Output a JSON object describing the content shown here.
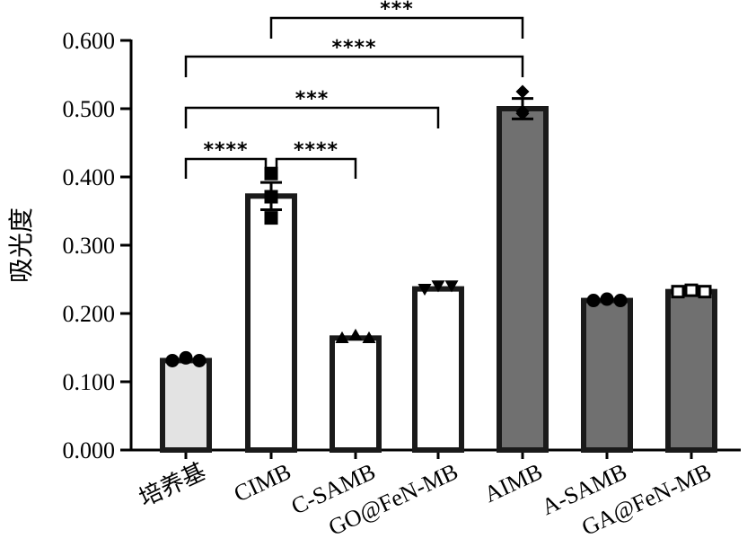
{
  "chart_data": {
    "type": "bar",
    "ylabel": "吸光度",
    "xlabel": "",
    "title": "",
    "ylim": [
      0,
      0.6
    ],
    "yticks": [
      "0.000",
      "0.100",
      "0.200",
      "0.300",
      "0.400",
      "0.500",
      "0.600"
    ],
    "grid": false,
    "legend": "none",
    "categories": [
      "培养基",
      "CIMB",
      "C-SAMB",
      "GO@FeN-MB",
      "AIMB",
      "A-SAMB",
      "GA@FeN-MB"
    ],
    "values": [
      0.131,
      0.372,
      0.164,
      0.236,
      0.5,
      0.219,
      0.232
    ],
    "errors": [
      0.002,
      0.02,
      0.002,
      0.003,
      0.015,
      0.002,
      0.004
    ],
    "fills": [
      "#e3e3e3",
      "#ffffff",
      "#ffffff",
      "#ffffff",
      "#707070",
      "#707070",
      "#707070"
    ],
    "markers": [
      "circle",
      "square",
      "triangle-up",
      "triangle-down",
      "diamond",
      "circle",
      "square-open"
    ],
    "points": [
      [
        0.131,
        0.135,
        0.131
      ],
      [
        0.405,
        0.371,
        0.34
      ],
      [
        0.164,
        0.168,
        0.164
      ],
      [
        0.236,
        0.241,
        0.241
      ],
      [
        0.525,
        0.493,
        0.496
      ],
      [
        0.219,
        0.221,
        0.219
      ],
      [
        0.232,
        0.234,
        0.232
      ]
    ],
    "significance": [
      {
        "from": 1,
        "to": 4,
        "label": "***"
      },
      {
        "from": 0,
        "to": 4,
        "label": "****"
      },
      {
        "from": 0,
        "to": 3,
        "label": "***"
      },
      {
        "from": 0,
        "to": 1,
        "label": "****"
      },
      {
        "from": 1,
        "to": 2,
        "label": "****"
      }
    ]
  }
}
